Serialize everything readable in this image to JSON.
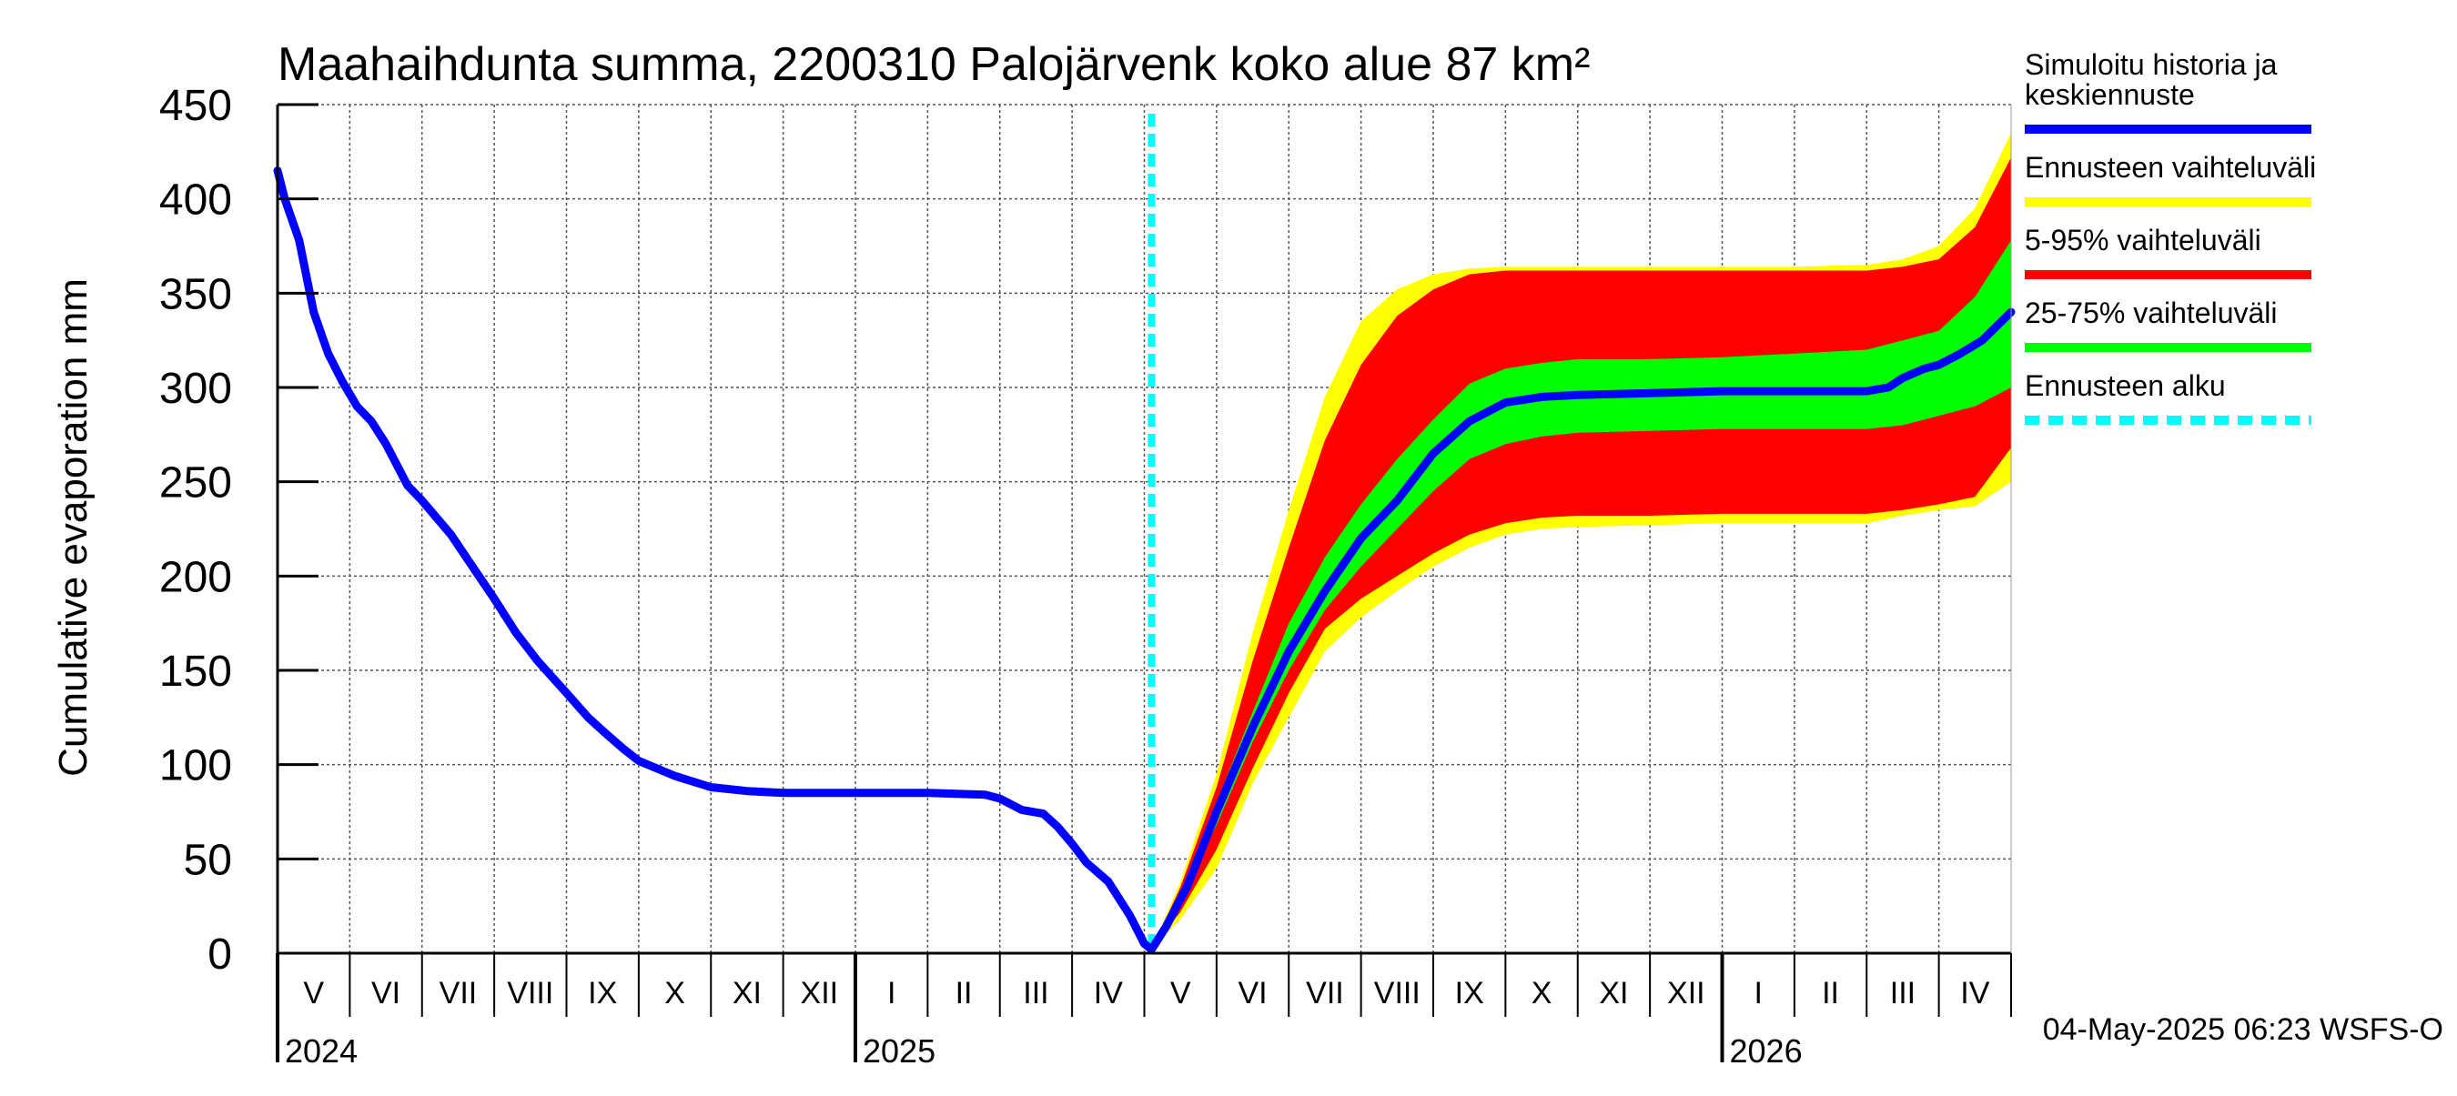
{
  "chart_data": {
    "type": "area",
    "title": "Maahaihdunta summa, 2200310 Palojärvenk koko alue 87 km²",
    "ylabel": "Cumulative evaporation   mm",
    "xlabel": "",
    "ylim": [
      0,
      450
    ],
    "yticks": [
      0,
      50,
      100,
      150,
      200,
      250,
      300,
      350,
      400,
      450
    ],
    "grid": true,
    "x_unit": "months since 2024-04-01",
    "xlim": [
      1,
      25
    ],
    "month_labels": [
      "V",
      "VI",
      "VII",
      "VIII",
      "IX",
      "X",
      "XI",
      "XII",
      "I",
      "II",
      "III",
      "IV",
      "V",
      "VI",
      "VII",
      "VIII",
      "IX",
      "X",
      "XI",
      "XII",
      "I",
      "II",
      "III",
      "IV"
    ],
    "year_labels": [
      {
        "label": "2024",
        "at": 1
      },
      {
        "label": "2025",
        "at": 9
      },
      {
        "label": "2026",
        "at": 21
      }
    ],
    "forecast_start": 13.1,
    "timestamp": "04-May-2025 06:23 WSFS-O",
    "legend": [
      {
        "label": "Simuloitu historia ja keskiennuste",
        "color": "#0000ff",
        "style": "solid"
      },
      {
        "label": "Ennusteen vaihteluväli",
        "color": "#ffff00",
        "style": "solid"
      },
      {
        "label": "5-95% vaihteluväli",
        "color": "#ff0000",
        "style": "solid"
      },
      {
        "label": "25-75% vaihteluväli",
        "color": "#00ff00",
        "style": "solid"
      },
      {
        "label": "Ennusteen alku",
        "color": "#00ffff",
        "style": "dashed"
      }
    ],
    "colors": {
      "history": "#0000ff",
      "range_full": "#ffff00",
      "range_5_95": "#ff0000",
      "range_25_75": "#00ff00",
      "forecast_start": "#00ffff"
    },
    "series": [
      {
        "name": "Simuloitu historia ja keskiennuste",
        "x": [
          1.0,
          1.1,
          1.3,
          1.5,
          1.7,
          1.9,
          2.1,
          2.3,
          2.5,
          2.8,
          3.0,
          3.4,
          3.7,
          4.0,
          4.3,
          4.6,
          5.0,
          5.3,
          5.5,
          5.8,
          6.0,
          6.5,
          7.0,
          7.5,
          8.0,
          9.0,
          10.0,
          10.8,
          11.0,
          11.3,
          11.6,
          11.8,
          12.0,
          12.2,
          12.5,
          12.8,
          13.0,
          13.1,
          13.3,
          13.6,
          14.0,
          14.5,
          15.0,
          15.5,
          16.0,
          16.5,
          17.0,
          17.5,
          18.0,
          18.5,
          19.0,
          20.0,
          21.0,
          22.0,
          23.0,
          23.3,
          23.5,
          23.8,
          24.0,
          24.3,
          24.6,
          25.0
        ],
        "y": [
          415,
          400,
          378,
          340,
          318,
          303,
          290,
          282,
          270,
          248,
          240,
          222,
          205,
          188,
          170,
          155,
          138,
          125,
          118,
          108,
          102,
          94,
          88,
          86,
          85,
          85,
          85,
          84,
          82,
          76,
          74,
          67,
          58,
          48,
          38,
          20,
          5,
          2,
          14,
          36,
          75,
          120,
          160,
          192,
          220,
          240,
          265,
          282,
          292,
          295,
          296,
          297,
          298,
          298,
          298,
          300,
          305,
          310,
          312,
          318,
          325,
          340
        ]
      }
    ],
    "bands": [
      {
        "name": "Ennusteen vaihteluväli",
        "x": [
          13.1,
          13.5,
          14.0,
          14.5,
          15.0,
          15.5,
          16.0,
          16.5,
          17.0,
          17.5,
          18.0,
          18.5,
          19.0,
          20.0,
          21.0,
          22.0,
          23.0,
          23.5,
          24.0,
          24.5,
          25.0
        ],
        "lower": [
          2,
          18,
          45,
          90,
          125,
          160,
          178,
          192,
          205,
          215,
          222,
          225,
          226,
          227,
          228,
          228,
          228,
          232,
          235,
          237,
          250
        ],
        "upper": [
          2,
          38,
          95,
          170,
          235,
          295,
          335,
          352,
          360,
          363,
          364,
          364,
          364,
          364,
          364,
          364,
          365,
          368,
          375,
          395,
          435
        ]
      },
      {
        "name": "5-95% vaihteluväli",
        "x": [
          13.1,
          13.5,
          14.0,
          14.5,
          15.0,
          15.5,
          16.0,
          16.5,
          17.0,
          17.5,
          18.0,
          18.5,
          19.0,
          20.0,
          21.0,
          22.0,
          23.0,
          23.5,
          24.0,
          24.5,
          25.0
        ],
        "lower": [
          2,
          22,
          55,
          98,
          138,
          172,
          188,
          200,
          212,
          222,
          228,
          231,
          232,
          232,
          233,
          233,
          233,
          235,
          238,
          242,
          268
        ],
        "upper": [
          2,
          35,
          88,
          155,
          215,
          272,
          312,
          338,
          352,
          360,
          362,
          362,
          362,
          362,
          362,
          362,
          362,
          364,
          368,
          385,
          422
        ]
      },
      {
        "name": "25-75% vaihteluväli",
        "x": [
          13.1,
          13.5,
          14.0,
          14.5,
          15.0,
          15.5,
          16.0,
          16.5,
          17.0,
          17.5,
          18.0,
          18.5,
          19.0,
          20.0,
          21.0,
          22.0,
          23.0,
          23.5,
          24.0,
          24.5,
          25.0
        ],
        "lower": [
          2,
          27,
          68,
          112,
          150,
          182,
          205,
          225,
          245,
          262,
          270,
          274,
          276,
          277,
          278,
          278,
          278,
          280,
          285,
          290,
          300
        ],
        "upper": [
          2,
          31,
          80,
          128,
          175,
          210,
          238,
          262,
          283,
          302,
          310,
          313,
          315,
          315,
          316,
          318,
          320,
          325,
          330,
          348,
          378
        ]
      }
    ]
  }
}
